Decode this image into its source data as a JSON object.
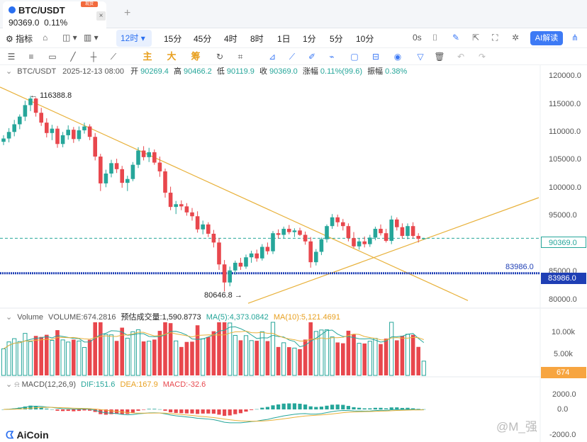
{
  "tab": {
    "symbol": "BTC/USDT",
    "price": "90369.0",
    "change": "0.11%",
    "badge": "现货",
    "close": "×",
    "new": "+"
  },
  "toolbar": {
    "indicators": "指标",
    "timeframe": "12时",
    "intervals": [
      "15分",
      "45分",
      "4时",
      "8时",
      "1日",
      "1分",
      "5分",
      "10分"
    ],
    "timer": "0s",
    "ai": "AI解读"
  },
  "draw_tools": {
    "main": "主",
    "big": "大",
    "chip": "筹"
  },
  "info": {
    "pair": "BTC/USDT",
    "time": "2025-12-13 08:00",
    "open_lbl": "开",
    "open": "90269.4",
    "high_lbl": "高",
    "high": "90466.2",
    "low_lbl": "低",
    "low": "90119.9",
    "close_lbl": "收",
    "close": "90369.0",
    "chg_lbl": "涨幅",
    "chg": "0.11%(99.6)",
    "amp_lbl": "振幅",
    "amp": "0.38%"
  },
  "price_axis": [
    "120000.0",
    "115000.0",
    "110000.0",
    "105000.0",
    "100000.0",
    "95000.0",
    "90000.0",
    "85000.0",
    "80000.0"
  ],
  "last_price": "90369.0",
  "level_price": "83986.0",
  "level_price_left": "83986.0",
  "annotations": {
    "high": "116388.8",
    "low": "80646.8"
  },
  "volume": {
    "label": "Volume",
    "vol": "VOLUME:674.2816",
    "est": "预估成交量:1,590.8773",
    "ma5": "MA(5):4,373.0842",
    "ma10": "MA(10):5,121.4691",
    "axis": [
      "10.00k",
      "5.00k"
    ],
    "current": "674"
  },
  "macd": {
    "label": "MACD(12,26,9)",
    "dif": "DIF:151.6",
    "dea": "DEA:167.9",
    "macd": "MACD:-32.6",
    "axis": [
      "2000.0",
      "0.0",
      "-2000.0"
    ]
  },
  "brand": "AiCoin",
  "watermark": "@M_强",
  "colors": {
    "up": "#26a69a",
    "down": "#e8474d",
    "accent": "#2a6ff0",
    "trend": "#e8b13a"
  },
  "chart_data": {
    "type": "candlestick",
    "ohlc": [
      [
        108000,
        109200,
        107400,
        108600
      ],
      [
        108600,
        110500,
        107900,
        109800
      ],
      [
        109800,
        112000,
        109000,
        111200
      ],
      [
        111200,
        113000,
        110300,
        112600
      ],
      [
        112600,
        115500,
        111800,
        114700
      ],
      [
        114700,
        116388.8,
        113600,
        115900
      ],
      [
        115900,
        116100,
        112600,
        113300
      ],
      [
        113300,
        114200,
        110900,
        111500
      ],
      [
        111500,
        112300,
        108800,
        109600
      ],
      [
        109600,
        111100,
        108300,
        110400
      ],
      [
        110400,
        110900,
        106900,
        107600
      ],
      [
        107600,
        109800,
        107000,
        109200
      ],
      [
        109200,
        111000,
        108400,
        110200
      ],
      [
        110200,
        110700,
        107800,
        108500
      ],
      [
        108500,
        110800,
        108100,
        110100
      ],
      [
        110100,
        111500,
        109500,
        110800
      ],
      [
        110800,
        111200,
        108300,
        108900
      ],
      [
        108900,
        109600,
        104600,
        105300
      ],
      [
        105300,
        105800,
        99000,
        100400
      ],
      [
        100400,
        102900,
        99700,
        102200
      ],
      [
        102200,
        104700,
        101500,
        104100
      ],
      [
        104100,
        104900,
        102300,
        103000
      ],
      [
        103000,
        103600,
        99600,
        100500
      ],
      [
        100500,
        101800,
        99000,
        101200
      ],
      [
        101200,
        104300,
        100800,
        103800
      ],
      [
        103800,
        107000,
        103200,
        106400
      ],
      [
        106400,
        107200,
        104600,
        105200
      ],
      [
        105200,
        106900,
        104300,
        106100
      ],
      [
        106100,
        106600,
        103800,
        104200
      ],
      [
        104200,
        105300,
        101600,
        102600
      ],
      [
        102600,
        103100,
        97800,
        98700
      ],
      [
        98700,
        99800,
        95500,
        96100
      ],
      [
        96100,
        97200,
        94800,
        96600
      ],
      [
        96600,
        97300,
        95500,
        96200
      ],
      [
        96200,
        96800,
        94500,
        95100
      ],
      [
        95100,
        95900,
        93600,
        94400
      ],
      [
        94400,
        95300,
        91400,
        92000
      ],
      [
        92000,
        93600,
        91100,
        92900
      ],
      [
        92900,
        93300,
        90600,
        91200
      ],
      [
        91200,
        91900,
        88700,
        89600
      ],
      [
        89600,
        90400,
        84600,
        85600
      ],
      [
        85600,
        86400,
        80646.8,
        82300
      ],
      [
        82300,
        85200,
        81600,
        84500
      ],
      [
        84500,
        86300,
        83700,
        85900
      ],
      [
        85900,
        86800,
        84600,
        85200
      ],
      [
        85200,
        87400,
        84800,
        86900
      ],
      [
        86900,
        88100,
        85900,
        87600
      ],
      [
        87600,
        88300,
        86100,
        86700
      ],
      [
        86700,
        89300,
        86300,
        88800
      ],
      [
        88800,
        89600,
        87400,
        88000
      ],
      [
        88000,
        91700,
        87500,
        91300
      ],
      [
        91300,
        92000,
        90300,
        91000
      ],
      [
        91000,
        92500,
        90400,
        92100
      ],
      [
        92100,
        92800,
        91100,
        91500
      ],
      [
        91500,
        92200,
        90600,
        91800
      ],
      [
        91800,
        92300,
        90800,
        91000
      ],
      [
        91000,
        91600,
        89200,
        89800
      ],
      [
        89800,
        90600,
        85000,
        86000
      ],
      [
        86000,
        88400,
        85400,
        87900
      ],
      [
        87900,
        90500,
        87300,
        90200
      ],
      [
        90200,
        92900,
        89600,
        92600
      ],
      [
        92600,
        94800,
        92100,
        94200
      ],
      [
        94200,
        94700,
        92500,
        93300
      ],
      [
        93300,
        93900,
        91800,
        92600
      ],
      [
        92600,
        93100,
        89800,
        90400
      ],
      [
        90400,
        91500,
        88600,
        88900
      ],
      [
        88900,
        90300,
        88300,
        89800
      ],
      [
        89800,
        90700,
        88700,
        89300
      ],
      [
        89300,
        91000,
        88800,
        90500
      ],
      [
        90500,
        92500,
        90000,
        92100
      ],
      [
        92100,
        92900,
        90900,
        91300
      ],
      [
        91300,
        92100,
        89600,
        89900
      ],
      [
        89900,
        94500,
        89300,
        93800
      ],
      [
        93800,
        94200,
        91800,
        92400
      ],
      [
        92400,
        93100,
        90300,
        90800
      ],
      [
        90800,
        93100,
        90200,
        92600
      ],
      [
        92600,
        93300,
        90400,
        90800
      ],
      [
        90800,
        91300,
        89600,
        90269.4
      ],
      [
        90269.4,
        90466.2,
        90119.9,
        90369
      ]
    ],
    "ylim": [
      78000,
      122000
    ],
    "series": [
      {
        "name": "MA(5)"
      },
      {
        "name": "MA(10)"
      }
    ]
  }
}
